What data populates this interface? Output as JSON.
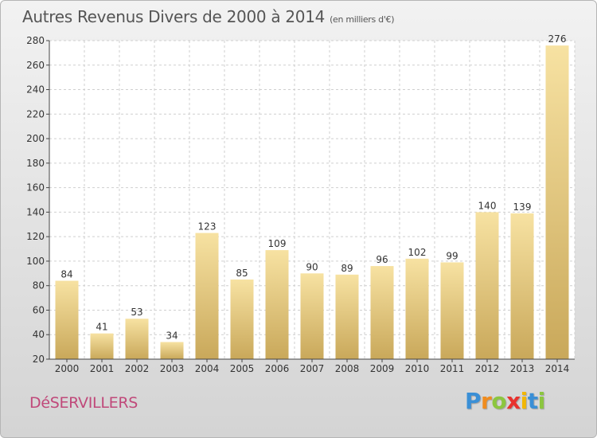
{
  "chart_title": "Autres Revenus Divers de 2000 à 2014",
  "chart_unit": "(en milliers d'€)",
  "commune": "DéSERVILLERS",
  "brand": {
    "letters": [
      "P",
      "r",
      "o",
      "x",
      "i",
      "t",
      "i"
    ],
    "colors": [
      "#3a8fd6",
      "#f08c1e",
      "#8cc63f",
      "#e8322e",
      "#f2b705",
      "#3a8fd6",
      "#8cc63f"
    ]
  },
  "colors": {
    "bar_light": "#f7e2a2",
    "bar_dark": "#c9a85a",
    "grid": "#cfcfcf",
    "axis": "#444444",
    "text": "#333333"
  },
  "chart_data": {
    "type": "bar",
    "categories": [
      "2000",
      "2001",
      "2002",
      "2003",
      "2004",
      "2005",
      "2006",
      "2007",
      "2008",
      "2009",
      "2010",
      "2011",
      "2012",
      "2013",
      "2014"
    ],
    "values": [
      84,
      41,
      53,
      34,
      123,
      85,
      109,
      90,
      89,
      96,
      102,
      99,
      140,
      139,
      276
    ],
    "title": "Autres Revenus Divers de 2000 à 2014",
    "subtitle": "(en milliers d'€)",
    "ylim": [
      20,
      280
    ],
    "yticks": [
      20,
      40,
      60,
      80,
      100,
      120,
      140,
      160,
      180,
      200,
      220,
      240,
      260,
      280
    ],
    "grid": true,
    "data_labels": true
  }
}
